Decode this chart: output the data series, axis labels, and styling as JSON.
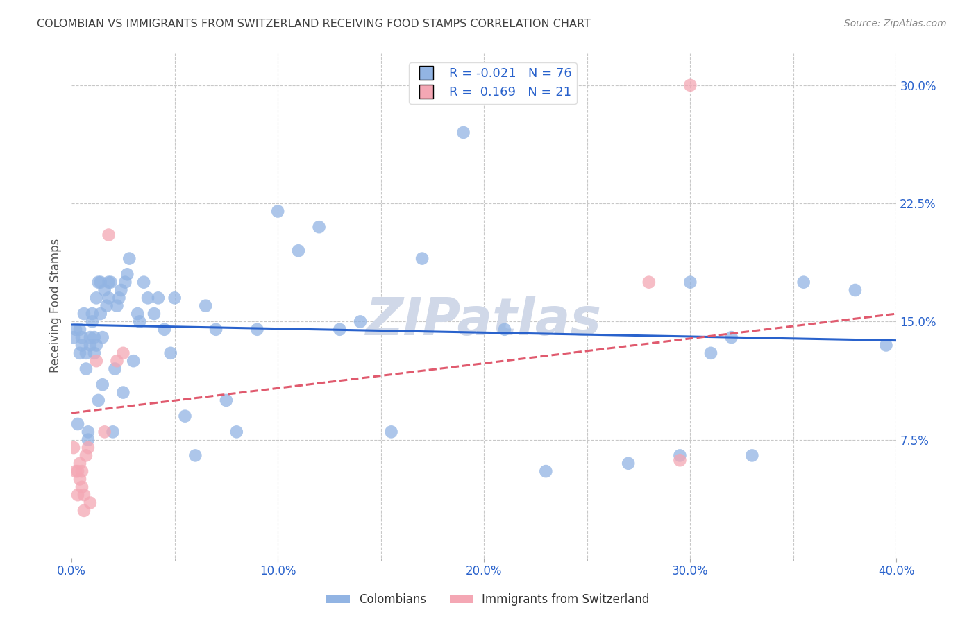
{
  "title": "COLOMBIAN VS IMMIGRANTS FROM SWITZERLAND RECEIVING FOOD STAMPS CORRELATION CHART",
  "source": "Source: ZipAtlas.com",
  "ylabel": "Receiving Food Stamps",
  "xlim": [
    0.0,
    0.4
  ],
  "ylim": [
    0.0,
    0.32
  ],
  "xtick_labels": [
    "0.0%",
    "",
    "10.0%",
    "",
    "20.0%",
    "",
    "30.0%",
    "",
    "40.0%"
  ],
  "xtick_vals": [
    0.0,
    0.05,
    0.1,
    0.15,
    0.2,
    0.25,
    0.3,
    0.35,
    0.4
  ],
  "xtick_display": [
    "0.0%",
    "10.0%",
    "20.0%",
    "30.0%",
    "40.0%"
  ],
  "xtick_display_vals": [
    0.0,
    0.1,
    0.2,
    0.3,
    0.4
  ],
  "ytick_labels_right": [
    "7.5%",
    "15.0%",
    "22.5%",
    "30.0%"
  ],
  "ytick_vals": [
    0.075,
    0.15,
    0.225,
    0.3
  ],
  "legend_labels": [
    "Colombians",
    "Immigrants from Switzerland"
  ],
  "blue_color": "#92b4e3",
  "pink_color": "#f4a7b4",
  "blue_line_color": "#2962cc",
  "pink_line_color": "#e05a6e",
  "legend_text_color": "#2962cc",
  "title_color": "#404040",
  "axis_color": "#2962cc",
  "watermark_text": "ZIPatlas",
  "watermark_color": "#d0d8e8",
  "blue_R": -0.021,
  "blue_N": 76,
  "pink_R": 0.169,
  "pink_N": 21,
  "blue_line_y0": 0.148,
  "blue_line_y1": 0.138,
  "pink_line_y0": 0.092,
  "pink_line_y1": 0.155,
  "blue_scatter_x": [
    0.001,
    0.002,
    0.003,
    0.004,
    0.004,
    0.005,
    0.005,
    0.006,
    0.007,
    0.007,
    0.008,
    0.008,
    0.009,
    0.009,
    0.01,
    0.01,
    0.011,
    0.011,
    0.012,
    0.012,
    0.013,
    0.013,
    0.014,
    0.014,
    0.015,
    0.015,
    0.016,
    0.017,
    0.018,
    0.018,
    0.019,
    0.02,
    0.021,
    0.022,
    0.023,
    0.024,
    0.025,
    0.026,
    0.027,
    0.028,
    0.03,
    0.032,
    0.033,
    0.035,
    0.037,
    0.04,
    0.042,
    0.045,
    0.048,
    0.05,
    0.055,
    0.06,
    0.065,
    0.07,
    0.075,
    0.08,
    0.09,
    0.1,
    0.11,
    0.12,
    0.13,
    0.14,
    0.155,
    0.17,
    0.19,
    0.21,
    0.23,
    0.27,
    0.295,
    0.3,
    0.31,
    0.32,
    0.33,
    0.355,
    0.38,
    0.395
  ],
  "blue_scatter_y": [
    0.14,
    0.145,
    0.085,
    0.13,
    0.145,
    0.135,
    0.14,
    0.155,
    0.12,
    0.13,
    0.075,
    0.08,
    0.135,
    0.14,
    0.15,
    0.155,
    0.13,
    0.14,
    0.165,
    0.135,
    0.175,
    0.1,
    0.155,
    0.175,
    0.11,
    0.14,
    0.17,
    0.16,
    0.175,
    0.165,
    0.175,
    0.08,
    0.12,
    0.16,
    0.165,
    0.17,
    0.105,
    0.175,
    0.18,
    0.19,
    0.125,
    0.155,
    0.15,
    0.175,
    0.165,
    0.155,
    0.165,
    0.145,
    0.13,
    0.165,
    0.09,
    0.065,
    0.16,
    0.145,
    0.1,
    0.08,
    0.145,
    0.22,
    0.195,
    0.21,
    0.145,
    0.15,
    0.08,
    0.19,
    0.27,
    0.145,
    0.055,
    0.06,
    0.065,
    0.175,
    0.13,
    0.14,
    0.065,
    0.175,
    0.17,
    0.135
  ],
  "pink_scatter_x": [
    0.001,
    0.002,
    0.003,
    0.003,
    0.004,
    0.004,
    0.005,
    0.005,
    0.006,
    0.006,
    0.007,
    0.008,
    0.009,
    0.012,
    0.016,
    0.018,
    0.022,
    0.025,
    0.28,
    0.295,
    0.3
  ],
  "pink_scatter_y": [
    0.07,
    0.055,
    0.04,
    0.055,
    0.06,
    0.05,
    0.045,
    0.055,
    0.04,
    0.03,
    0.065,
    0.07,
    0.035,
    0.125,
    0.08,
    0.205,
    0.125,
    0.13,
    0.175,
    0.062,
    0.3
  ],
  "background_color": "#ffffff",
  "grid_color": "#c8c8c8"
}
